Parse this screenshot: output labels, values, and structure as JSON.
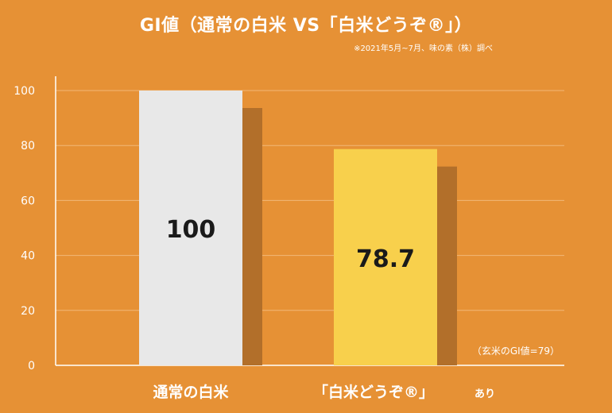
{
  "chart_data": {
    "type": "bar",
    "title": "GI値（通常の白米 VS「白米どうぞ®」）",
    "source_note": "※2021年5月~7月、味の素（株）調べ",
    "categories": [
      "通常の白米",
      "「白米どうぞ®」"
    ],
    "category_suffixes": [
      "",
      "あり"
    ],
    "values": [
      100,
      78.7
    ],
    "value_labels": [
      "100",
      "78.7"
    ],
    "bar_colors": [
      "#e8e8e8",
      "#f8d04c"
    ],
    "shadow_color": "#b26f2a",
    "ylim": [
      0,
      100
    ],
    "yticks": [
      0,
      20,
      40,
      60,
      80,
      100
    ],
    "grid": true,
    "annotation": "（玄米のGI値=79）"
  }
}
